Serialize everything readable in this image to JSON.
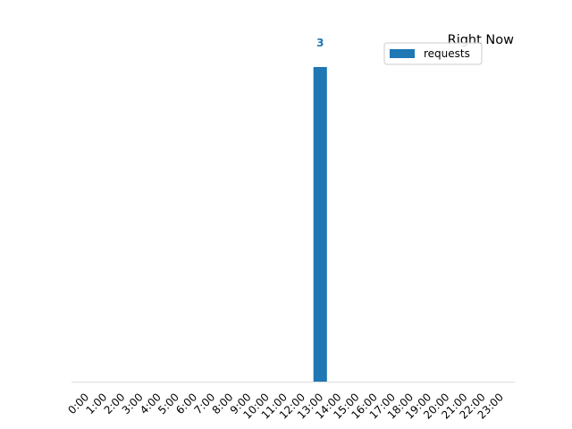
{
  "chart_data": {
    "type": "bar",
    "title": "Right Now",
    "categories": [
      "0:00",
      "1:00",
      "2:00",
      "3:00",
      "4:00",
      "5:00",
      "6:00",
      "7:00",
      "8:00",
      "9:00",
      "10:00",
      "11:00",
      "12:00",
      "13:00",
      "14:00",
      "15:00",
      "16:00",
      "17:00",
      "18:00",
      "19:00",
      "20:00",
      "21:00",
      "22:00",
      "23:00"
    ],
    "series": [
      {
        "name": "requests",
        "values": [
          0,
          0,
          0,
          0,
          0,
          0,
          0,
          0,
          0,
          0,
          0,
          0,
          0,
          3,
          0,
          0,
          0,
          0,
          0,
          0,
          0,
          0,
          0,
          0
        ]
      }
    ],
    "data_labels": [
      {
        "category": "13:00",
        "text": "3"
      }
    ],
    "ylim": [
      0,
      3
    ],
    "xlabel": "",
    "ylabel": "",
    "grid": false,
    "y_axis_visible": false,
    "legend_placement": "top-right",
    "colors": {
      "bar": "#1f77b4",
      "value_label": "#1f77b4",
      "baseline": "#dddddd"
    }
  }
}
